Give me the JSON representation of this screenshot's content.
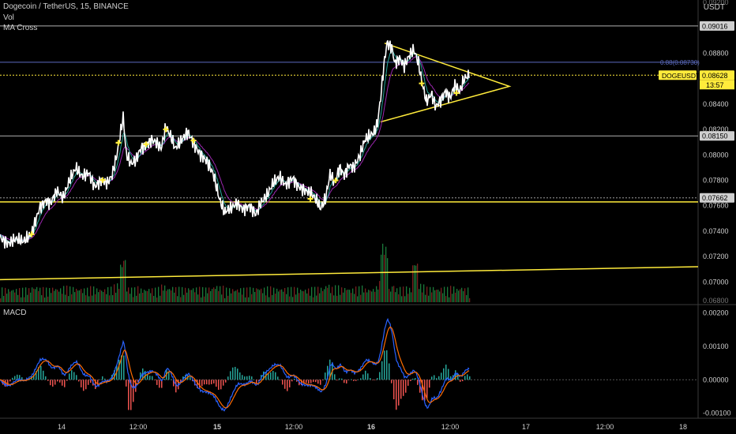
{
  "header": {
    "symbol_line": "Dogecoin / TetherUS, 15, BINANCE",
    "indicator_1": "Vol",
    "indicator_2": "MA Cross",
    "currency": "USDT"
  },
  "macd_title": "MACD",
  "colors": {
    "price": "#ffffff",
    "ma_fast": "#26a69a",
    "ma_slow": "#9c27b0",
    "trendline": "#ffeb3b",
    "macd_line": "#2962ff",
    "signal_line": "#ff6d00",
    "hist_up": "#26a69a",
    "hist_down": "#ef5350",
    "vol_up": "#1b7a3a",
    "vol_down": "#7a1f1f"
  },
  "chart_data": {
    "type": "line",
    "x_tick_labels": [
      "14",
      "12:00",
      "15",
      "12:00",
      "16",
      "12:00",
      "17",
      "12:00",
      "18"
    ],
    "price_axis": {
      "ylim": [
        0.0684,
        0.0922
      ],
      "ticks": [
        "0.07000",
        "0.07200",
        "0.07400",
        "0.07600",
        "0.07800",
        "0.08000",
        "0.08200",
        "0.08400",
        "0.08800"
      ],
      "top_partial": "0.09200",
      "bottom_partial": "0.06800"
    },
    "price_series_anchors": [
      [
        0,
        0.0735
      ],
      [
        10,
        0.073
      ],
      [
        20,
        0.0734
      ],
      [
        30,
        0.0732
      ],
      [
        40,
        0.0738
      ],
      [
        50,
        0.0758
      ],
      [
        58,
        0.0764
      ],
      [
        64,
        0.0762
      ],
      [
        72,
        0.0772
      ],
      [
        80,
        0.0766
      ],
      [
        88,
        0.078
      ],
      [
        96,
        0.079
      ],
      [
        104,
        0.0783
      ],
      [
        112,
        0.0786
      ],
      [
        120,
        0.0775
      ],
      [
        128,
        0.078
      ],
      [
        136,
        0.0778
      ],
      [
        142,
        0.0784
      ],
      [
        148,
        0.08
      ],
      [
        152,
        0.0815
      ],
      [
        156,
        0.083
      ],
      [
        160,
        0.08
      ],
      [
        166,
        0.0793
      ],
      [
        172,
        0.0796
      ],
      [
        178,
        0.0805
      ],
      [
        186,
        0.0808
      ],
      [
        192,
        0.0812
      ],
      [
        198,
        0.081
      ],
      [
        204,
        0.0805
      ],
      [
        210,
        0.0822
      ],
      [
        216,
        0.0815
      ],
      [
        222,
        0.0805
      ],
      [
        230,
        0.0812
      ],
      [
        238,
        0.0818
      ],
      [
        246,
        0.0808
      ],
      [
        254,
        0.08
      ],
      [
        262,
        0.0795
      ],
      [
        270,
        0.0785
      ],
      [
        278,
        0.0765
      ],
      [
        284,
        0.0755
      ],
      [
        292,
        0.0758
      ],
      [
        300,
        0.0762
      ],
      [
        308,
        0.0757
      ],
      [
        316,
        0.076
      ],
      [
        324,
        0.0753
      ],
      [
        330,
        0.0762
      ],
      [
        338,
        0.0768
      ],
      [
        346,
        0.0778
      ],
      [
        354,
        0.0783
      ],
      [
        362,
        0.0776
      ],
      [
        370,
        0.0782
      ],
      [
        378,
        0.0775
      ],
      [
        386,
        0.0772
      ],
      [
        394,
        0.077
      ],
      [
        400,
        0.0765
      ],
      [
        406,
        0.0758
      ],
      [
        412,
        0.0765
      ],
      [
        418,
        0.0785
      ],
      [
        424,
        0.0778
      ],
      [
        430,
        0.079
      ],
      [
        436,
        0.0784
      ],
      [
        442,
        0.0792
      ],
      [
        448,
        0.079
      ],
      [
        456,
        0.08
      ],
      [
        462,
        0.0812
      ],
      [
        468,
        0.0815
      ],
      [
        474,
        0.0818
      ],
      [
        478,
        0.0825
      ],
      [
        482,
        0.0845
      ],
      [
        486,
        0.087
      ],
      [
        490,
        0.0888
      ],
      [
        496,
        0.0885
      ],
      [
        500,
        0.0872
      ],
      [
        506,
        0.0876
      ],
      [
        512,
        0.087
      ],
      [
        518,
        0.0878
      ],
      [
        524,
        0.0883
      ],
      [
        530,
        0.0872
      ],
      [
        534,
        0.0858
      ],
      [
        540,
        0.0842
      ],
      [
        546,
        0.0848
      ],
      [
        552,
        0.0838
      ],
      [
        558,
        0.0843
      ],
      [
        564,
        0.085
      ],
      [
        570,
        0.0845
      ],
      [
        576,
        0.0855
      ],
      [
        582,
        0.085
      ],
      [
        588,
        0.086
      ],
      [
        594,
        0.0863
      ]
    ],
    "horizontal_levels": [
      {
        "value": 0.09016,
        "label": "0.09016",
        "style": "solid"
      },
      {
        "value": 0.0873,
        "label": "0.88(0.08730)",
        "style": "solid"
      },
      {
        "value": 0.08628,
        "label": "0.08628",
        "style": "dotted",
        "tag": "DOGEUSDT",
        "timer": "13:57"
      },
      {
        "value": 0.0815,
        "label": "0.08150",
        "style": "solid"
      },
      {
        "value": 0.07662,
        "label": "0.07662",
        "style": "dotted"
      },
      {
        "value": 0.0763,
        "label": "",
        "style": "yellow"
      }
    ],
    "macd_axis": {
      "ylim": [
        -0.00115,
        0.0022
      ],
      "ticks": [
        "0.00200",
        "0.00100",
        "0.00000",
        "-0.00100"
      ]
    }
  }
}
